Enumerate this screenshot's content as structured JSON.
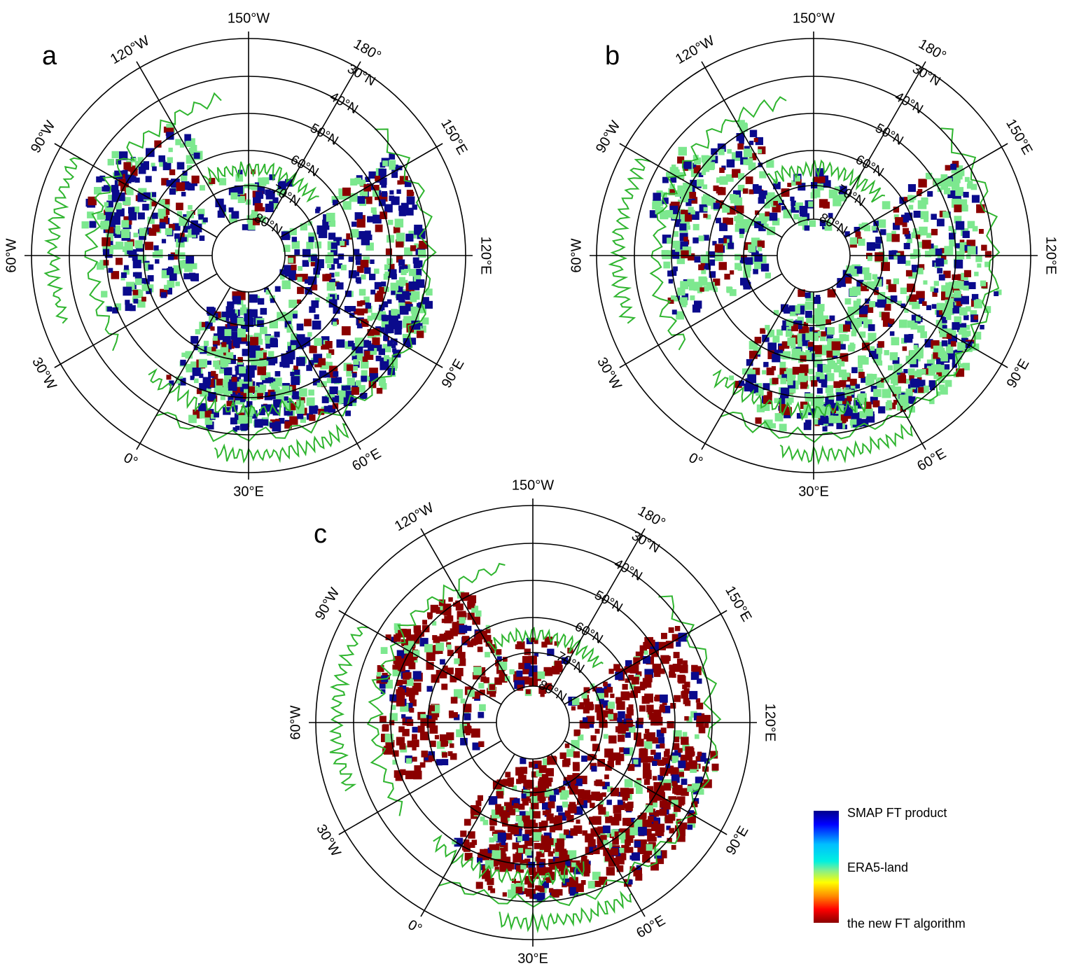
{
  "panels": [
    {
      "letter": "a",
      "mix": {
        "smap": 0.45,
        "era5": 0.4,
        "newft": 0.15
      },
      "longitude_labels": [
        "150°W",
        "180°",
        "150°E",
        "120°E",
        "90°E",
        "60°E",
        "30°E",
        "0°",
        "30°W",
        "60°W",
        "90°W",
        "120°W"
      ],
      "latitude_labels": [
        "30°N",
        "40°N",
        "50°N",
        "60°N",
        "70°N",
        "80°N"
      ]
    },
    {
      "letter": "b",
      "mix": {
        "smap": 0.28,
        "era5": 0.52,
        "newft": 0.2
      },
      "longitude_labels": [
        "150°W",
        "180°",
        "150°E",
        "120°E",
        "90°E",
        "60°E",
        "30°E",
        "0°",
        "30°W",
        "60°W",
        "90°W",
        "120°W"
      ],
      "latitude_labels": [
        "30°N",
        "40°N",
        "50°N",
        "60°N",
        "70°N",
        "80°N"
      ]
    },
    {
      "letter": "c",
      "mix": {
        "smap": 0.14,
        "era5": 0.16,
        "newft": 0.7
      },
      "longitude_labels": [
        "150°W",
        "180°",
        "150°E",
        "120°E",
        "90°E",
        "60°E",
        "30°E",
        "0°",
        "30°W",
        "60°W",
        "90°W",
        "120°W"
      ],
      "latitude_labels": [
        "30°N",
        "40°N",
        "50°N",
        "60°N",
        "70°N",
        "80°N"
      ]
    }
  ],
  "legend": {
    "labels": [
      "SMAP FT product",
      "ERA5-land",
      "the new FT algorithm"
    ],
    "colors": [
      "#00008b",
      "#1e90ff",
      "#00e5ee",
      "#80ef90",
      "#ffff00",
      "#ff8c00",
      "#ff0000",
      "#8b0000"
    ]
  },
  "colors": {
    "smap": "#0a0a8c",
    "era5": "#7de88f",
    "newft": "#8b0000",
    "coast": "#2fb52f",
    "grid": "#000000"
  }
}
